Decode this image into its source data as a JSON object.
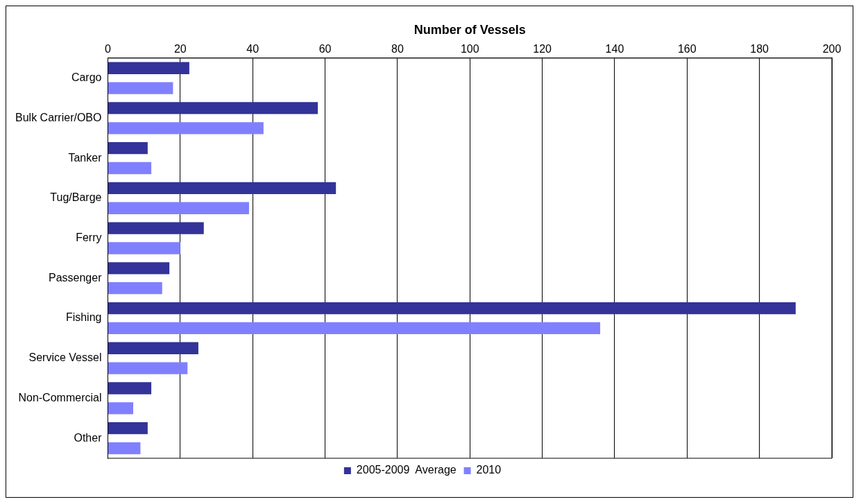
{
  "chart_data": {
    "type": "bar",
    "orientation": "horizontal",
    "xlabel": "Number of Vessels",
    "categories": [
      "Cargo",
      "Bulk Carrier/OBO",
      "Tanker",
      "Tug/Barge",
      "Ferry",
      "Passenger",
      "Fishing",
      "Service Vessel",
      "Non-Commercial",
      "Other"
    ],
    "series": [
      {
        "name": "2005-2009  Average",
        "color": "#333399",
        "values": [
          22.5,
          58,
          11,
          63,
          26.5,
          17,
          190,
          25,
          12,
          11
        ]
      },
      {
        "name": "2010",
        "color": "#8080ff",
        "values": [
          18,
          43,
          12,
          39,
          20,
          15,
          136,
          22,
          7,
          9
        ]
      }
    ],
    "xlim": [
      0,
      200
    ],
    "xticks": [
      0,
      20,
      40,
      60,
      80,
      100,
      120,
      140,
      160,
      180,
      200
    ],
    "grid": "x",
    "legend": "bottom"
  }
}
